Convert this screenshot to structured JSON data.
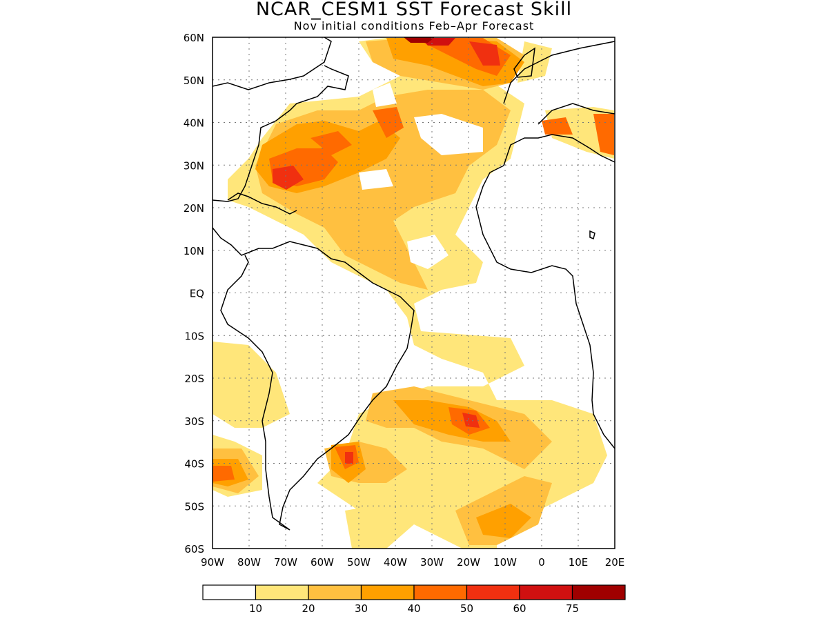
{
  "title": "NCAR_CESM1 SST Forecast Skill",
  "subtitle": "Nov initial conditions  Feb–Apr Forecast",
  "map": {
    "lon_range": [
      -90,
      20
    ],
    "lat_range": [
      -60,
      60
    ],
    "lat_ticks": [
      "60N",
      "50N",
      "40N",
      "30N",
      "20N",
      "10N",
      "EQ",
      "10S",
      "20S",
      "30S",
      "40S",
      "50S",
      "60S"
    ],
    "lon_ticks": [
      "90W",
      "80W",
      "70W",
      "60W",
      "50W",
      "40W",
      "30W",
      "20W",
      "10W",
      "0",
      "10E",
      "20E"
    ],
    "gridlines": "dotted"
  },
  "colorbar": {
    "colors": [
      "#ffffff",
      "#ffe67a",
      "#ffc040",
      "#ffa000",
      "#ff6a00",
      "#f03010",
      "#d01010",
      "#a00000"
    ],
    "labels": [
      "10",
      "20",
      "30",
      "40",
      "50",
      "60",
      "75"
    ]
  }
}
